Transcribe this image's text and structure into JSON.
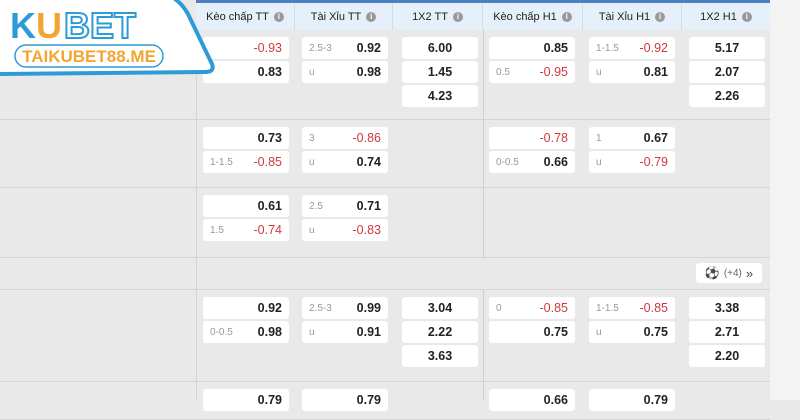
{
  "logo": {
    "brand": "KUBET",
    "site": "TAIKUBET88.ME",
    "colors": {
      "blue": "#2f9bd6",
      "orange": "#f2a531"
    }
  },
  "columns": [
    "Kèo chấp TT",
    "Tài Xỉu TT",
    "1X2 TT",
    "Kèo chấp H1",
    "Tài Xỉu H1",
    "1X2 H1"
  ],
  "colors": {
    "negative": "#d0393e",
    "header_bg": "#e6f0fa",
    "accent": "#4a7fc1"
  },
  "league_row": {
    "more_label": "(+4)",
    "icon": "soccer-ball-icon",
    "chevron": "double-chevron-right-icon"
  },
  "rows": [
    {
      "cells": [
        [
          {
            "line": "",
            "val": "-0.93"
          },
          {
            "line": "",
            "val": "0.83"
          }
        ],
        [
          {
            "line": "2.5-3",
            "val": "0.92"
          },
          {
            "line": "u",
            "val": "0.98"
          }
        ],
        [
          {
            "val": "6.00"
          },
          {
            "val": "1.45"
          },
          {
            "val": "4.23"
          }
        ],
        [
          {
            "line": "",
            "val": "0.85"
          },
          {
            "line": "0.5",
            "val": "-0.95"
          }
        ],
        [
          {
            "line": "1-1.5",
            "val": "-0.92"
          },
          {
            "line": "u",
            "val": "0.81"
          }
        ],
        [
          {
            "val": "5.17"
          },
          {
            "val": "2.07"
          },
          {
            "val": "2.26"
          }
        ]
      ]
    },
    {
      "cells": [
        [
          {
            "line": "",
            "val": "0.73"
          },
          {
            "line": "1-1.5",
            "val": "-0.85"
          }
        ],
        [
          {
            "line": "3",
            "val": "-0.86"
          },
          {
            "line": "u",
            "val": "0.74"
          }
        ],
        [],
        [
          {
            "line": "",
            "val": "-0.78"
          },
          {
            "line": "0-0.5",
            "val": "0.66"
          }
        ],
        [
          {
            "line": "1",
            "val": "0.67"
          },
          {
            "line": "u",
            "val": "-0.79"
          }
        ],
        []
      ]
    },
    {
      "cells": [
        [
          {
            "line": "",
            "val": "0.61"
          },
          {
            "line": "1.5",
            "val": "-0.74"
          }
        ],
        [
          {
            "line": "2.5",
            "val": "0.71"
          },
          {
            "line": "u",
            "val": "-0.83"
          }
        ],
        [],
        [],
        [],
        []
      ]
    },
    {
      "cells": [
        [
          {
            "line": "",
            "val": "0.92"
          },
          {
            "line": "0-0.5",
            "val": "0.98"
          }
        ],
        [
          {
            "line": "2.5-3",
            "val": "0.99"
          },
          {
            "line": "u",
            "val": "0.91"
          }
        ],
        [
          {
            "val": "3.04"
          },
          {
            "val": "2.22"
          },
          {
            "val": "3.63"
          }
        ],
        [
          {
            "line": "0",
            "val": "-0.85"
          },
          {
            "line": "",
            "val": "0.75"
          }
        ],
        [
          {
            "line": "1-1.5",
            "val": "-0.85"
          },
          {
            "line": "u",
            "val": "0.75"
          }
        ],
        [
          {
            "val": "3.38"
          },
          {
            "val": "2.71"
          },
          {
            "val": "2.20"
          }
        ]
      ]
    },
    {
      "cells": [
        [
          {
            "line": "",
            "val": "0.79"
          }
        ],
        [
          {
            "line": "",
            "val": "0.79"
          }
        ],
        [],
        [
          {
            "line": "",
            "val": "0.66"
          }
        ],
        [
          {
            "line": "",
            "val": "0.79"
          }
        ],
        []
      ]
    }
  ]
}
